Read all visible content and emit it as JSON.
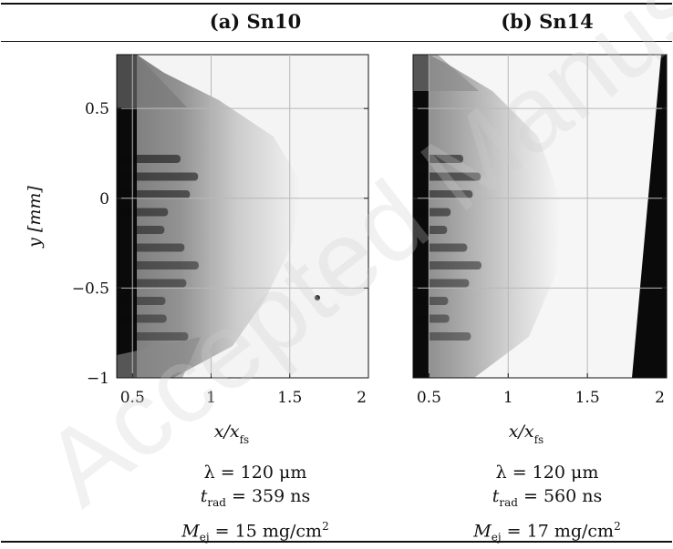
{
  "panels": [
    {
      "title": "(a) Sn10",
      "lambda": "λ = 120 μm",
      "t_rad_value": "= 359 ns",
      "m_ej_value": "= 15 mg/cm",
      "colors": {
        "background": "#f4f4f4",
        "jet": "#0a0a0a"
      },
      "stripes": 11,
      "particle": true
    },
    {
      "title": "(b) Sn14",
      "lambda": "λ = 120 μm",
      "t_rad_value": "= 560 ns",
      "m_ej_value": "= 17 mg/cm",
      "colors": {
        "background": "#f6f6f6",
        "jet": "#0a0a0a"
      },
      "stripes": 11,
      "particle": false
    }
  ],
  "axes": {
    "x_label": "x/x",
    "x_label_sub": "fs",
    "y_label": "y [mm]",
    "x_ticks": [
      "0.5",
      "1",
      "1.5",
      "2"
    ],
    "x_tick_values": [
      0.5,
      1,
      1.5,
      2
    ],
    "y_ticks": [
      "0.5",
      "0",
      "−0.5",
      "−1"
    ],
    "y_tick_values": [
      0.5,
      0,
      -0.5,
      -1
    ],
    "x_range": [
      0.4,
      2.0
    ],
    "y_range": [
      -1.0,
      0.8
    ],
    "grid": true
  },
  "labels": {
    "t_rad": "t",
    "t_rad_sub": "rad",
    "m_ej": "M",
    "m_ej_sub": "ej",
    "sup2": "2"
  },
  "watermark": "Accepted Manuscript"
}
